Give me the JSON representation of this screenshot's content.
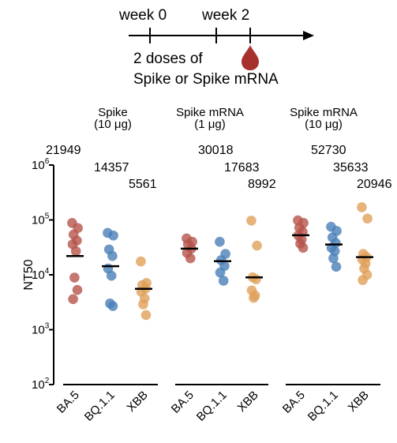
{
  "schematic": {
    "week0_label": "week 0",
    "week2_label": "week 2",
    "doses_line1": "2 doses of",
    "doses_line2": "Spike or Spike mRNA",
    "drop_color": "#a8302c",
    "drop_icon": "blood-drop-icon"
  },
  "chart_data": {
    "type": "scatter",
    "ylabel": "NT50",
    "yscale": "log",
    "ylim": [
      100,
      1000000
    ],
    "ytick_values": [
      100,
      1000,
      10000,
      100000,
      1000000
    ],
    "ytick_labels": [
      {
        "base": "10",
        "exp": "2"
      },
      {
        "base": "10",
        "exp": "3"
      },
      {
        "base": "10",
        "exp": "4"
      },
      {
        "base": "10",
        "exp": "5"
      },
      {
        "base": "10",
        "exp": "6"
      }
    ],
    "grid": false,
    "marker_summary": "geometric mean (black bar)",
    "variant_colors": {
      "BA.5": "#b5544b",
      "BQ.1.1": "#4a7fb8",
      "XBB": "#e0a05a"
    },
    "groups": [
      {
        "title_line1": "Spike",
        "title_line2": "(10 μg)",
        "categories": [
          {
            "name": "BA.5",
            "geomean": 21949,
            "geomean_label": "21949",
            "points": [
              88000,
              71000,
              54000,
              42000,
              36000,
              27000,
              8900,
              5300,
              3600
            ]
          },
          {
            "name": "BQ.1.1",
            "geomean": 14357,
            "geomean_label": "14357",
            "points": [
              58000,
              52000,
              29000,
              22000,
              13000,
              9600,
              3000,
              2700
            ]
          },
          {
            "name": "XBB",
            "geomean": 5561,
            "geomean_label": "5561",
            "points": [
              17500,
              7100,
              6500,
              5600,
              4900,
              3700,
              2900,
              1850
            ]
          }
        ]
      },
      {
        "title_line1": "Spike mRNA",
        "title_line2": "(1 μg)",
        "categories": [
          {
            "name": "BA.5",
            "geomean": 30018,
            "geomean_label": "30018",
            "points": [
              46000,
              40000,
              36000,
              30000,
              25000,
              20000
            ]
          },
          {
            "name": "BQ.1.1",
            "geomean": 17683,
            "geomean_label": "17683",
            "points": [
              40000,
              24000,
              18500,
              14500,
              11000,
              7800
            ]
          },
          {
            "name": "XBB",
            "geomean": 8992,
            "geomean_label": "8992",
            "points": [
              97000,
              34000,
              9000,
              8300,
              5200,
              4200,
              3800
            ]
          }
        ]
      },
      {
        "title_line1": "Spike mRNA",
        "title_line2": "(10 μg)",
        "categories": [
          {
            "name": "BA.5",
            "geomean": 52730,
            "geomean_label": "52730",
            "points": [
              98000,
              88000,
              72000,
              61000,
              52000,
              44000,
              37000,
              31000
            ]
          },
          {
            "name": "BQ.1.1",
            "geomean": 35633,
            "geomean_label": "35633",
            "points": [
              75000,
              63000,
              48000,
              38000,
              31000,
              27000,
              20000,
              14000
            ]
          },
          {
            "name": "XBB",
            "geomean": 20946,
            "geomean_label": "20946",
            "points": [
              170000,
              106000,
              24000,
              21000,
              19000,
              16000,
              13000,
              10000,
              8000
            ]
          }
        ]
      }
    ]
  }
}
